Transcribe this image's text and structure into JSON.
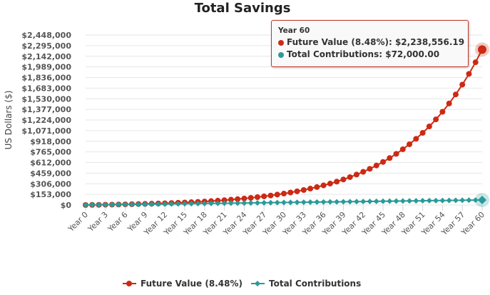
{
  "colors": {
    "future_value": "#cc2a14",
    "contributions": "#2a9a9a",
    "grid": "#e6e6e6"
  },
  "tooltip": {
    "header": "Year 60",
    "rows": [
      {
        "label": "Future Value (8.48%)",
        "value": "$2,238,556.19",
        "color": "#cc2a14"
      },
      {
        "label": "Total Contributions",
        "value": "$72,000.00",
        "color": "#2a9a9a"
      }
    ]
  },
  "chart_data": {
    "type": "line",
    "title": "Total Savings",
    "xlabel": "",
    "ylabel": "US Dollars ($)",
    "ylim": [
      0,
      2448000
    ],
    "yticks": [
      "$0",
      "$153,000",
      "$306,000",
      "$459,000",
      "$612,000",
      "$765,000",
      "$918,000",
      "$1,071,000",
      "$1,224,000",
      "$1,377,000",
      "$1,530,000",
      "$1,683,000",
      "$1,836,000",
      "$1,989,000",
      "$2,142,000",
      "$2,295,000",
      "$2,448,000"
    ],
    "ytick_values": [
      0,
      153000,
      306000,
      459000,
      612000,
      765000,
      918000,
      1071000,
      1224000,
      1377000,
      1530000,
      1683000,
      1836000,
      1989000,
      2142000,
      2295000,
      2448000
    ],
    "x": [
      "Year 0",
      "Year 1",
      "Year 2",
      "Year 3",
      "Year 4",
      "Year 5",
      "Year 6",
      "Year 7",
      "Year 8",
      "Year 9",
      "Year 10",
      "Year 11",
      "Year 12",
      "Year 13",
      "Year 14",
      "Year 15",
      "Year 16",
      "Year 17",
      "Year 18",
      "Year 19",
      "Year 20",
      "Year 21",
      "Year 22",
      "Year 23",
      "Year 24",
      "Year 25",
      "Year 26",
      "Year 27",
      "Year 28",
      "Year 29",
      "Year 30",
      "Year 31",
      "Year 32",
      "Year 33",
      "Year 34",
      "Year 35",
      "Year 36",
      "Year 37",
      "Year 38",
      "Year 39",
      "Year 40",
      "Year 41",
      "Year 42",
      "Year 43",
      "Year 44",
      "Year 45",
      "Year 46",
      "Year 47",
      "Year 48",
      "Year 49",
      "Year 50",
      "Year 51",
      "Year 52",
      "Year 53",
      "Year 54",
      "Year 55",
      "Year 56",
      "Year 57",
      "Year 58",
      "Year 59",
      "Year 60"
    ],
    "xtick_labels_shown_every": 3,
    "grid": true,
    "legend": "bottom-center",
    "series": [
      {
        "name": "Future Value (8.48%)",
        "marker": "circle",
        "values": [
          0,
          1248,
          2606,
          4085,
          5690,
          7440,
          9344,
          11416,
          13670,
          16122,
          18791,
          21696,
          24856,
          28295,
          32037,
          36110,
          40541,
          45363,
          50610,
          56320,
          62535,
          69295,
          76653,
          84659,
          93371,
          102852,
          113168,
          124393,
          136609,
          149901,
          164365,
          180106,
          197232,
          215870,
          236151,
          258220,
          282235,
          308367,
          336803,
          367747,
          401418,
          438060,
          477930,
          521316,
          568528,
          619903,
          675806,
          736640,
          802836,
          874870,
          953254,
          1038548,
          1131364,
          1232362,
          1342264,
          1461858,
          1591999,
          1733607,
          1887705,
          2055386,
          2238556.19
        ]
      },
      {
        "name": "Total Contributions",
        "marker": "diamond",
        "values": [
          0,
          1200,
          2400,
          3600,
          4800,
          6000,
          7200,
          8400,
          9600,
          10800,
          12000,
          13200,
          14400,
          15600,
          16800,
          18000,
          19200,
          20400,
          21600,
          22800,
          24000,
          25200,
          26400,
          27600,
          28800,
          30000,
          31200,
          32400,
          33600,
          34800,
          36000,
          37200,
          38400,
          39600,
          40800,
          42000,
          43200,
          44400,
          45600,
          46800,
          48000,
          49200,
          50400,
          51600,
          52800,
          54000,
          55200,
          56400,
          57600,
          58800,
          60000,
          61200,
          62400,
          63600,
          64800,
          66000,
          67200,
          68400,
          69600,
          70800,
          72000
        ]
      }
    ]
  }
}
